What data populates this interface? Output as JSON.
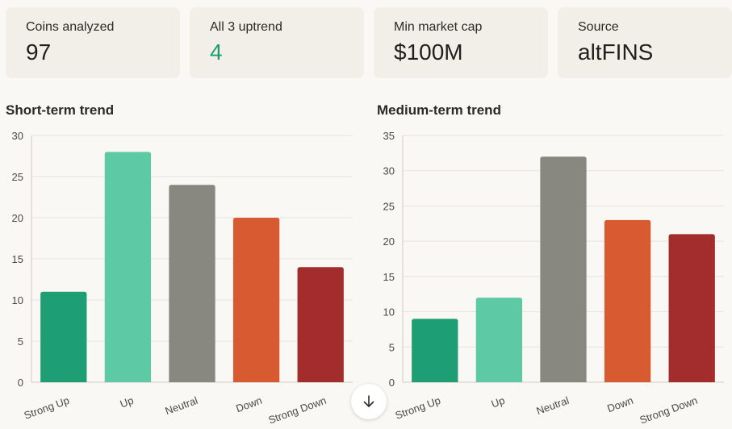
{
  "stats": [
    {
      "label": "Coins analyzed",
      "value": "97",
      "accent": false
    },
    {
      "label": "All 3 uptrend",
      "value": "4",
      "accent": true
    },
    {
      "label": "Min market cap",
      "value": "$100M",
      "accent": false
    },
    {
      "label": "Source",
      "value": "altFINS",
      "accent": false
    }
  ],
  "colors": {
    "strong_up": "#1d9e74",
    "up": "#5ecaa5",
    "neutral": "#888780",
    "down": "#d85a30",
    "strong_down": "#a32d2d",
    "accent": "#1d9b72"
  },
  "chart_data": [
    {
      "type": "bar",
      "title": "Short-term trend",
      "categories": [
        "Strong Up",
        "Up",
        "Neutral",
        "Down",
        "Strong Down"
      ],
      "values": [
        11,
        28,
        24,
        20,
        14
      ],
      "ylim": [
        0,
        30
      ],
      "yticks": [
        0,
        5,
        10,
        15,
        20,
        25,
        30
      ],
      "xlabel": "",
      "ylabel": "",
      "grid": true
    },
    {
      "type": "bar",
      "title": "Medium-term trend",
      "categories": [
        "Strong Up",
        "Up",
        "Neutral",
        "Down",
        "Strong Down"
      ],
      "values": [
        9,
        12,
        32,
        23,
        21
      ],
      "ylim": [
        0,
        35
      ],
      "yticks": [
        0,
        5,
        10,
        15,
        20,
        25,
        30,
        35
      ],
      "xlabel": "",
      "ylabel": "",
      "grid": true
    }
  ],
  "scroll_icon": "arrow-down-icon"
}
